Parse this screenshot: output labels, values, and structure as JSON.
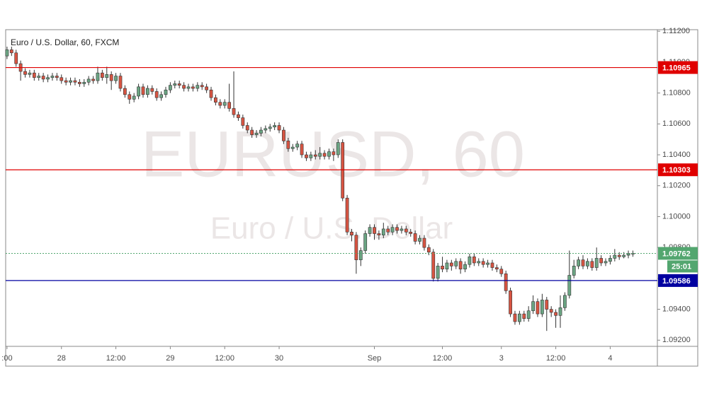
{
  "chart_data": {
    "type": "candlestick",
    "title": "Euro / U.S. Dollar, 60, FXCM",
    "watermark": "EURUSD, 60",
    "watermark_subtitle": "Euro / U.S. Dollar",
    "up_color": "#6ba583",
    "down_color": "#d75442",
    "ylim": [
      1.0916,
      1.1121
    ],
    "yticks": [
      {
        "value": 1.092,
        "label": "1.09200"
      },
      {
        "value": 1.094,
        "label": "1.09400"
      },
      {
        "value": 1.096,
        "label": "1.09600"
      },
      {
        "value": 1.098,
        "label": "1.09800"
      },
      {
        "value": 1.1,
        "label": "1.10000"
      },
      {
        "value": 1.102,
        "label": "1.10200"
      },
      {
        "value": 1.104,
        "label": "1.10400"
      },
      {
        "value": 1.106,
        "label": "1.10600"
      },
      {
        "value": 1.108,
        "label": "1.10800"
      },
      {
        "value": 1.11,
        "label": "1.11000"
      },
      {
        "value": 1.112,
        "label": "1.11200"
      }
    ],
    "xlim": [
      -0.3,
      143.4
    ],
    "xticks": [
      {
        "value": 0,
        "label": ":00"
      },
      {
        "value": 12,
        "label": "28"
      },
      {
        "value": 24,
        "label": "12:00"
      },
      {
        "value": 36,
        "label": "29"
      },
      {
        "value": 48,
        "label": "12:00"
      },
      {
        "value": 60,
        "label": "30"
      },
      {
        "value": 81,
        "label": "Sep"
      },
      {
        "value": 96,
        "label": "12:00"
      },
      {
        "value": 109,
        "label": "3"
      },
      {
        "value": 121,
        "label": "12:00"
      },
      {
        "value": 133,
        "label": "4"
      }
    ],
    "levels": [
      {
        "value": 1.10965,
        "color": "#e00000"
      },
      {
        "value": 1.10303,
        "color": "#e00000"
      },
      {
        "value": 1.09586,
        "color": "#0000a0"
      }
    ],
    "countdown": "25:01",
    "last_color": "#53a66f",
    "ohlc": [
      [
        1.1104,
        1.111,
        1.1102,
        1.1108
      ],
      [
        1.1108,
        1.111,
        1.1104,
        1.1106
      ],
      [
        1.1106,
        1.1108,
        1.1097,
        1.1099
      ],
      [
        1.1099,
        1.1101,
        1.1088,
        1.1094
      ],
      [
        1.1094,
        1.1096,
        1.109,
        1.1092
      ],
      [
        1.1092,
        1.1095,
        1.109,
        1.1093
      ],
      [
        1.1093,
        1.1095,
        1.1088,
        1.109
      ],
      [
        1.109,
        1.1093,
        1.1088,
        1.1091
      ],
      [
        1.1091,
        1.1093,
        1.1087,
        1.1089
      ],
      [
        1.1089,
        1.1092,
        1.1087,
        1.109
      ],
      [
        1.109,
        1.1093,
        1.1088,
        1.1091
      ],
      [
        1.1091,
        1.1093,
        1.1088,
        1.109
      ],
      [
        1.109,
        1.1092,
        1.1086,
        1.1088
      ],
      [
        1.1088,
        1.109,
        1.1085,
        1.1087
      ],
      [
        1.1087,
        1.109,
        1.1085,
        1.1088
      ],
      [
        1.1088,
        1.109,
        1.1085,
        1.1087
      ],
      [
        1.1087,
        1.1089,
        1.1084,
        1.1086
      ],
      [
        1.1086,
        1.1089,
        1.1084,
        1.1087
      ],
      [
        1.1087,
        1.1091,
        1.1085,
        1.1089
      ],
      [
        1.1089,
        1.1091,
        1.1086,
        1.1088
      ],
      [
        1.1088,
        1.1097,
        1.1086,
        1.1093
      ],
      [
        1.1093,
        1.1095,
        1.1088,
        1.109
      ],
      [
        1.109,
        1.1097,
        1.1086,
        1.1092
      ],
      [
        1.1092,
        1.1094,
        1.1082,
        1.1088
      ],
      [
        1.1088,
        1.1093,
        1.1086,
        1.1091
      ],
      [
        1.1091,
        1.1093,
        1.1081,
        1.1083
      ],
      [
        1.1083,
        1.1085,
        1.1077,
        1.1079
      ],
      [
        1.1079,
        1.1081,
        1.1073,
        1.1076
      ],
      [
        1.1076,
        1.108,
        1.1074,
        1.1078
      ],
      [
        1.1078,
        1.1086,
        1.1076,
        1.1084
      ],
      [
        1.1084,
        1.1086,
        1.1077,
        1.1079
      ],
      [
        1.1079,
        1.1085,
        1.1077,
        1.1083
      ],
      [
        1.1083,
        1.1085,
        1.1079,
        1.1081
      ],
      [
        1.1081,
        1.1083,
        1.1075,
        1.1077
      ],
      [
        1.1077,
        1.1081,
        1.1075,
        1.1079
      ],
      [
        1.1079,
        1.1084,
        1.1077,
        1.1082
      ],
      [
        1.1082,
        1.1087,
        1.108,
        1.1085
      ],
      [
        1.1085,
        1.1088,
        1.1083,
        1.1086
      ],
      [
        1.1086,
        1.1088,
        1.1083,
        1.1085
      ],
      [
        1.1085,
        1.1087,
        1.1081,
        1.1083
      ],
      [
        1.1083,
        1.1086,
        1.1081,
        1.1084
      ],
      [
        1.1084,
        1.1086,
        1.1081,
        1.1083
      ],
      [
        1.1083,
        1.1087,
        1.1081,
        1.1085
      ],
      [
        1.1085,
        1.1087,
        1.1082,
        1.1084
      ],
      [
        1.1084,
        1.1086,
        1.108,
        1.1082
      ],
      [
        1.1082,
        1.1084,
        1.1075,
        1.1077
      ],
      [
        1.1077,
        1.1079,
        1.1072,
        1.1074
      ],
      [
        1.1074,
        1.1076,
        1.107,
        1.1072
      ],
      [
        1.1072,
        1.1076,
        1.107,
        1.1074
      ],
      [
        1.1074,
        1.1086,
        1.1068,
        1.107
      ],
      [
        1.107,
        1.1094,
        1.1064,
        1.1066
      ],
      [
        1.1066,
        1.1068,
        1.1062,
        1.1064
      ],
      [
        1.1064,
        1.1066,
        1.1057,
        1.1059
      ],
      [
        1.1059,
        1.1061,
        1.1054,
        1.1056
      ],
      [
        1.1056,
        1.1058,
        1.1051,
        1.1053
      ],
      [
        1.1053,
        1.1056,
        1.1051,
        1.1054
      ],
      [
        1.1054,
        1.1058,
        1.1052,
        1.1056
      ],
      [
        1.1056,
        1.1059,
        1.1054,
        1.1057
      ],
      [
        1.1057,
        1.106,
        1.1055,
        1.1058
      ],
      [
        1.1058,
        1.1061,
        1.1056,
        1.1059
      ],
      [
        1.1059,
        1.1061,
        1.1054,
        1.1056
      ],
      [
        1.1056,
        1.1058,
        1.1047,
        1.1049
      ],
      [
        1.1049,
        1.1051,
        1.1042,
        1.1044
      ],
      [
        1.1044,
        1.1047,
        1.1042,
        1.1045
      ],
      [
        1.1045,
        1.1049,
        1.1043,
        1.1047
      ],
      [
        1.1047,
        1.1049,
        1.1038,
        1.104
      ],
      [
        1.104,
        1.1042,
        1.1036,
        1.1038
      ],
      [
        1.1038,
        1.1042,
        1.1036,
        1.104
      ],
      [
        1.104,
        1.1043,
        1.1037,
        1.1039
      ],
      [
        1.1039,
        1.1045,
        1.1037,
        1.1041
      ],
      [
        1.1041,
        1.1043,
        1.1037,
        1.1039
      ],
      [
        1.1039,
        1.1044,
        1.1037,
        1.1042
      ],
      [
        1.1042,
        1.1044,
        1.1036,
        1.104
      ],
      [
        1.104,
        1.105,
        1.1038,
        1.1048
      ],
      [
        1.1048,
        1.105,
        1.101,
        1.1012
      ],
      [
        1.1012,
        1.1014,
        1.0988,
        1.099
      ],
      [
        1.099,
        1.0992,
        1.0984,
        1.0988
      ],
      [
        1.0988,
        1.099,
        1.0963,
        1.0972
      ],
      [
        1.0972,
        1.098,
        1.0968,
        1.0978
      ],
      [
        1.0978,
        1.0991,
        1.0976,
        1.0989
      ],
      [
        1.0989,
        1.0995,
        1.0987,
        1.0993
      ],
      [
        1.0993,
        1.0995,
        1.0985,
        1.0989
      ],
      [
        1.0989,
        1.0991,
        1.0985,
        1.0988
      ],
      [
        1.0988,
        1.0996,
        1.0986,
        1.0992
      ],
      [
        1.0992,
        1.0994,
        1.0988,
        1.099
      ],
      [
        1.099,
        1.0995,
        1.0988,
        1.0993
      ],
      [
        1.0993,
        1.0995,
        1.0989,
        1.0991
      ],
      [
        1.0991,
        1.0994,
        1.0989,
        1.0992
      ],
      [
        1.0992,
        1.0994,
        1.0988,
        1.099
      ],
      [
        1.099,
        1.0992,
        1.0987,
        1.0989
      ],
      [
        1.0989,
        1.0991,
        1.0982,
        1.0984
      ],
      [
        1.0984,
        1.0988,
        1.0982,
        1.0986
      ],
      [
        1.0986,
        1.0988,
        1.0978,
        1.098
      ],
      [
        1.098,
        1.0982,
        1.0975,
        1.0977
      ],
      [
        1.0977,
        1.0979,
        1.0958,
        1.096
      ],
      [
        1.096,
        1.097,
        1.0958,
        1.0968
      ],
      [
        1.0968,
        1.0974,
        1.0964,
        1.0966
      ],
      [
        1.0966,
        1.0972,
        1.0964,
        1.097
      ],
      [
        1.097,
        1.0972,
        1.0965,
        1.0968
      ],
      [
        1.0968,
        1.0973,
        1.0966,
        1.0971
      ],
      [
        1.0971,
        1.0973,
        1.0963,
        1.0966
      ],
      [
        1.0966,
        1.0971,
        1.0964,
        1.0969
      ],
      [
        1.0969,
        1.0976,
        1.0967,
        1.0974
      ],
      [
        1.0974,
        1.0976,
        1.0968,
        1.097
      ],
      [
        1.097,
        1.0973,
        1.0968,
        1.0971
      ],
      [
        1.0971,
        1.0973,
        1.0967,
        1.0969
      ],
      [
        1.0969,
        1.0972,
        1.0967,
        1.097
      ],
      [
        1.097,
        1.0972,
        1.0965,
        1.0967
      ],
      [
        1.0967,
        1.0969,
        1.0964,
        1.0966
      ],
      [
        1.0966,
        1.0968,
        1.0961,
        1.0963
      ],
      [
        1.0963,
        1.0965,
        1.095,
        1.0952
      ],
      [
        1.0952,
        1.0954,
        1.0935,
        1.0937
      ],
      [
        1.0937,
        1.0939,
        1.093,
        1.0932
      ],
      [
        1.0932,
        1.0939,
        1.093,
        1.0937
      ],
      [
        1.0937,
        1.0939,
        1.0932,
        1.0934
      ],
      [
        1.0934,
        1.0942,
        1.0932,
        1.0939
      ],
      [
        1.0939,
        1.0949,
        1.0937,
        1.0945
      ],
      [
        1.0945,
        1.0947,
        1.0935,
        1.0937
      ],
      [
        1.0937,
        1.095,
        1.0935,
        1.0946
      ],
      [
        1.0946,
        1.0948,
        1.0926,
        1.094
      ],
      [
        1.094,
        1.0942,
        1.0935,
        1.0938
      ],
      [
        1.0938,
        1.094,
        1.0928,
        1.0936
      ],
      [
        1.0936,
        1.0949,
        1.0928,
        1.0941
      ],
      [
        1.0941,
        1.0951,
        1.0939,
        1.0949
      ],
      [
        1.0949,
        1.0978,
        1.0947,
        1.0962
      ],
      [
        1.0962,
        1.0972,
        1.096,
        1.0968
      ],
      [
        1.0968,
        1.0974,
        1.0966,
        1.0972
      ],
      [
        1.0972,
        1.0975,
        1.0966,
        1.0968
      ],
      [
        1.0968,
        1.0973,
        1.0966,
        1.0971
      ],
      [
        1.0971,
        1.0973,
        1.0965,
        1.0967
      ],
      [
        1.0967,
        1.098,
        1.0965,
        1.0973
      ],
      [
        1.0973,
        1.0975,
        1.0968,
        1.097
      ],
      [
        1.097,
        1.0973,
        1.0968,
        1.0971
      ],
      [
        1.0971,
        1.0975,
        1.0969,
        1.0973
      ],
      [
        1.0973,
        1.0979,
        1.0971,
        1.0975
      ],
      [
        1.0975,
        1.0977,
        1.0972,
        1.0974
      ],
      [
        1.0974,
        1.0977,
        1.0973,
        1.0975
      ],
      [
        1.0975,
        1.0978,
        1.0973,
        1.0976
      ],
      [
        1.0976,
        1.0978,
        1.0974,
        1.09762
      ]
    ]
  }
}
